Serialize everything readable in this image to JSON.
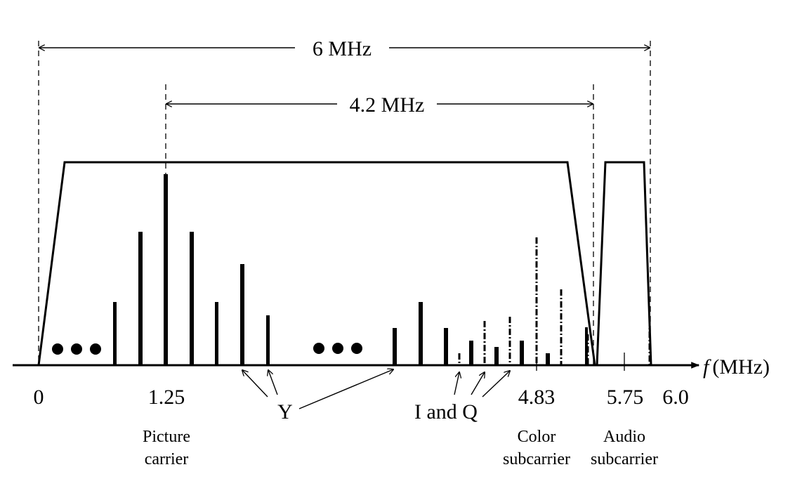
{
  "diagram": {
    "spans": {
      "total": "6 MHz",
      "video": "4.2 MHz"
    },
    "axis": {
      "symbol": "f",
      "unit": "(MHz)"
    },
    "ticks": {
      "zero": "0",
      "picture": "1.25",
      "color": "4.83",
      "audio": "5.75",
      "end": "6.0"
    },
    "annotations": {
      "luma": "Y",
      "chroma": "I and Q"
    },
    "captions": {
      "picture_line1": "Picture",
      "picture_line2": "carrier",
      "color_line1": "Color",
      "color_line2": "subcarrier",
      "audio_line1": "Audio",
      "audio_line2": "subcarrier"
    }
  }
}
